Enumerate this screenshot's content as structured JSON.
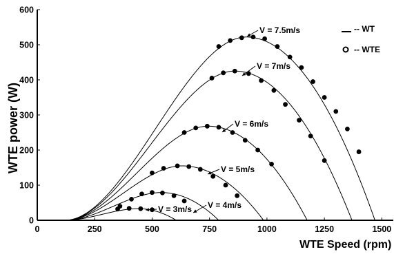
{
  "chart_data": {
    "type": "line",
    "title": "",
    "xlabel": "WTE Speed (rpm)",
    "ylabel": "WTE power (W)",
    "xlim": [
      0,
      1550
    ],
    "ylim": [
      0,
      600
    ],
    "xticks": [
      0,
      250,
      500,
      750,
      1000,
      1250,
      1500
    ],
    "yticks": [
      0,
      100,
      200,
      300,
      400,
      500,
      600
    ],
    "grid": false,
    "legend": {
      "placement": "top-right",
      "entries": [
        {
          "symbol": "__",
          "label": "-- WT"
        },
        {
          "symbol": "o",
          "label": "-- WTE"
        }
      ]
    },
    "series": [
      {
        "name": "V = 3m/s",
        "wt_curve": {
          "start_rpm": 120,
          "peak_rpm": 440,
          "peak_power": 33,
          "end_rpm": 605
        },
        "wte_points": [
          [
            350,
            32
          ],
          [
            400,
            34
          ],
          [
            450,
            33
          ],
          [
            500,
            30
          ]
        ]
      },
      {
        "name": "V = 4m/s",
        "wt_curve": {
          "start_rpm": 120,
          "peak_rpm": 540,
          "peak_power": 79,
          "end_rpm": 790
        },
        "wte_points": [
          [
            360,
            40
          ],
          [
            410,
            60
          ],
          [
            455,
            75
          ],
          [
            500,
            79
          ],
          [
            545,
            78
          ],
          [
            595,
            70
          ],
          [
            640,
            55
          ]
        ]
      },
      {
        "name": "V = 5m/s",
        "wt_curve": {
          "start_rpm": 120,
          "peak_rpm": 630,
          "peak_power": 155,
          "end_rpm": 985
        },
        "wte_points": [
          [
            500,
            135
          ],
          [
            550,
            148
          ],
          [
            610,
            155
          ],
          [
            660,
            153
          ],
          [
            710,
            145
          ],
          [
            765,
            125
          ],
          [
            820,
            100
          ],
          [
            870,
            70
          ]
        ]
      },
      {
        "name": "V = 6m/s",
        "wt_curve": {
          "start_rpm": 120,
          "peak_rpm": 745,
          "peak_power": 268,
          "end_rpm": 1175
        },
        "wte_points": [
          [
            640,
            250
          ],
          [
            690,
            263
          ],
          [
            740,
            268
          ],
          [
            790,
            265
          ],
          [
            850,
            250
          ],
          [
            905,
            228
          ],
          [
            960,
            200
          ],
          [
            1020,
            160
          ]
        ]
      },
      {
        "name": "V = 7m/s",
        "wt_curve": {
          "start_rpm": 120,
          "peak_rpm": 860,
          "peak_power": 425,
          "end_rpm": 1370
        },
        "wte_points": [
          [
            760,
            405
          ],
          [
            810,
            420
          ],
          [
            860,
            425
          ],
          [
            920,
            418
          ],
          [
            975,
            398
          ],
          [
            1030,
            370
          ],
          [
            1080,
            330
          ],
          [
            1140,
            285
          ],
          [
            1190,
            240
          ],
          [
            1250,
            170
          ]
        ]
      },
      {
        "name": "V = 7.5m/s",
        "wt_curve": {
          "start_rpm": 120,
          "peak_rpm": 910,
          "peak_power": 522,
          "end_rpm": 1470
        },
        "wte_points": [
          [
            790,
            495
          ],
          [
            840,
            512
          ],
          [
            890,
            520
          ],
          [
            940,
            522
          ],
          [
            990,
            517
          ],
          [
            1045,
            495
          ],
          [
            1100,
            465
          ],
          [
            1150,
            435
          ],
          [
            1200,
            395
          ],
          [
            1250,
            350
          ],
          [
            1300,
            310
          ],
          [
            1350,
            260
          ],
          [
            1400,
            195
          ]
        ]
      }
    ]
  }
}
